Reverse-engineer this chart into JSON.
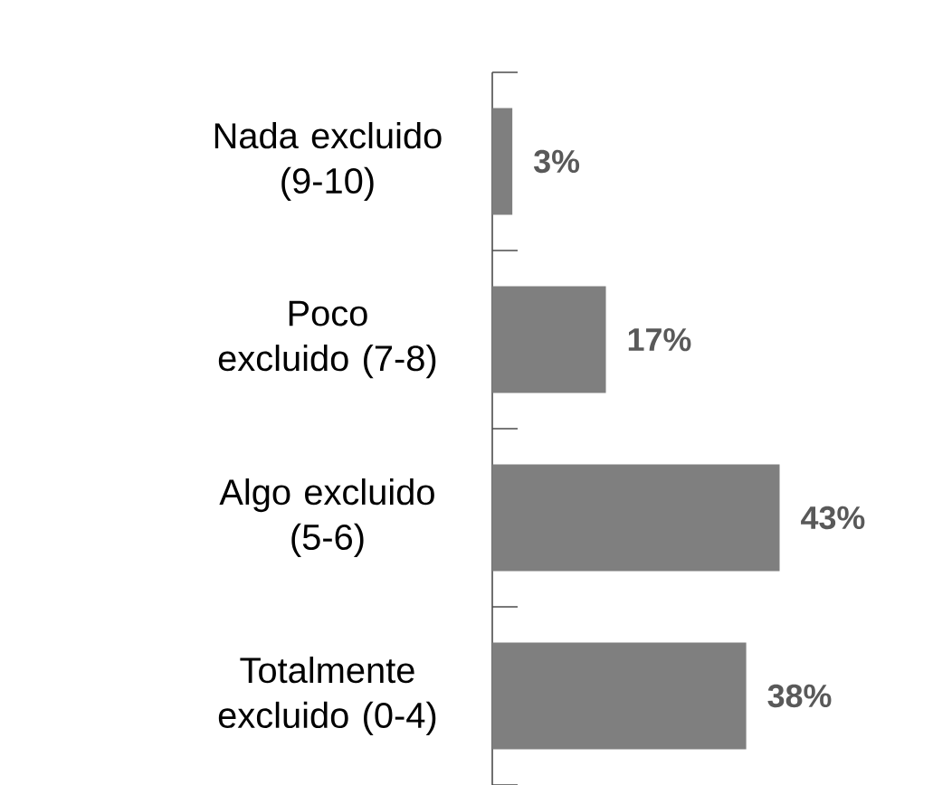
{
  "chart_data": {
    "type": "bar",
    "orientation": "horizontal",
    "categories": [
      "Nada excluido (9-10)",
      "Poco excluido (7-8)",
      "Algo excluido (5-6)",
      "Totalmente excluido (0-4)"
    ],
    "values": [
      3,
      17,
      43,
      38
    ],
    "value_labels": [
      "3%",
      "17%",
      "43%",
      "38%"
    ],
    "color": "#7f7f7f"
  }
}
